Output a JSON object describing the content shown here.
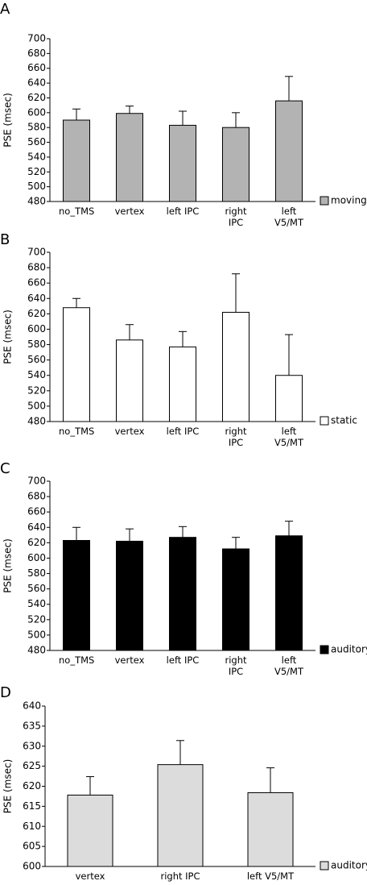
{
  "chart_data": [
    {
      "type": "bar",
      "panel": "A",
      "y_label": "PSE (msec)",
      "categories": [
        "no_TMS",
        "vertex",
        "left IPC",
        "right IPC",
        "left V5/MT"
      ],
      "series": [
        {
          "name": "moving",
          "color": "#b3b3b3",
          "values": [
            590,
            599,
            583,
            580,
            616
          ],
          "errors": [
            15,
            10,
            19,
            20,
            33
          ]
        }
      ],
      "ylim": [
        480,
        700
      ],
      "yticks": [
        480,
        500,
        520,
        540,
        560,
        580,
        600,
        620,
        640,
        660,
        680,
        700
      ]
    },
    {
      "type": "bar",
      "panel": "B",
      "y_label": "PSE (msec)",
      "categories": [
        "no_TMS",
        "vertex",
        "left IPC",
        "right IPC",
        "left V5/MT"
      ],
      "series": [
        {
          "name": "static",
          "color": "#ffffff",
          "values": [
            628,
            586,
            577,
            622,
            540
          ],
          "errors": [
            12,
            20,
            20,
            50,
            53
          ]
        }
      ],
      "ylim": [
        480,
        700
      ],
      "yticks": [
        480,
        500,
        520,
        540,
        560,
        580,
        600,
        620,
        640,
        660,
        680,
        700
      ]
    },
    {
      "type": "bar",
      "panel": "C",
      "y_label": "PSE (msec)",
      "categories": [
        "no_TMS",
        "vertex",
        "left IPC",
        "right IPC",
        "left V5/MT"
      ],
      "series": [
        {
          "name": "auditory",
          "color": "#000000",
          "values": [
            623,
            622,
            627,
            612,
            629
          ],
          "errors": [
            17,
            16,
            14,
            15,
            19
          ]
        }
      ],
      "ylim": [
        480,
        700
      ],
      "yticks": [
        480,
        500,
        520,
        540,
        560,
        580,
        600,
        620,
        640,
        660,
        680,
        700
      ]
    },
    {
      "type": "bar",
      "panel": "D",
      "y_label": "PSE (msec)",
      "categories": [
        "vertex",
        "right IPC",
        "left V5/MT"
      ],
      "series": [
        {
          "name": "auditory",
          "color": "#dcdcdc",
          "values": [
            617.8,
            625.4,
            618.4
          ],
          "errors": [
            4.6,
            6,
            6.2
          ]
        }
      ],
      "ylim": [
        600,
        640
      ],
      "yticks": [
        600,
        605,
        610,
        615,
        620,
        625,
        630,
        635,
        640
      ]
    }
  ]
}
